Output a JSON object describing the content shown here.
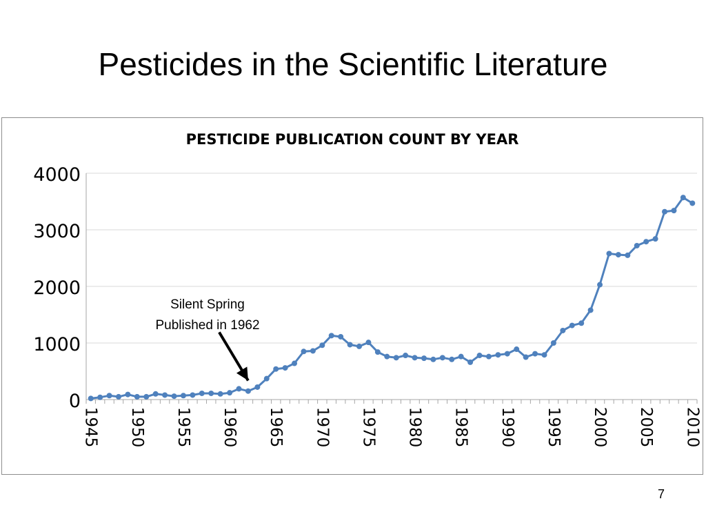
{
  "slide": {
    "title": "Pesticides in the Scientific Literature",
    "page_number": "7"
  },
  "colors": {
    "series": "#4f81bd",
    "gridline": "#d9d9d9",
    "axis": "#a6a6a6",
    "arrow": "#000000"
  },
  "chart_data": {
    "type": "line",
    "title": "PESTICIDE PUBLICATION COUNT BY YEAR",
    "xlabel": "",
    "ylabel": "",
    "ylim": [
      0,
      4000
    ],
    "yticks": [
      0,
      1000,
      2000,
      3000,
      4000
    ],
    "xticks": [
      1945,
      1950,
      1955,
      1960,
      1965,
      1970,
      1975,
      1980,
      1985,
      1990,
      1995,
      2000,
      2005,
      2010
    ],
    "grid": true,
    "legend": "none",
    "x": [
      1945,
      1946,
      1947,
      1948,
      1949,
      1950,
      1951,
      1952,
      1953,
      1954,
      1955,
      1956,
      1957,
      1958,
      1959,
      1960,
      1961,
      1962,
      1963,
      1964,
      1965,
      1966,
      1967,
      1968,
      1969,
      1970,
      1971,
      1972,
      1973,
      1974,
      1975,
      1976,
      1977,
      1978,
      1979,
      1980,
      1981,
      1982,
      1983,
      1984,
      1985,
      1986,
      1987,
      1988,
      1989,
      1990,
      1991,
      1992,
      1993,
      1994,
      1995,
      1996,
      1997,
      1998,
      1999,
      2000,
      2001,
      2002,
      2003,
      2004,
      2005,
      2006,
      2007,
      2008,
      2009,
      2010
    ],
    "series": [
      {
        "values": [
          20,
          40,
          70,
          50,
          90,
          50,
          50,
          100,
          80,
          60,
          70,
          80,
          110,
          110,
          100,
          120,
          190,
          150,
          220,
          370,
          540,
          560,
          640,
          850,
          860,
          960,
          1130,
          1110,
          970,
          940,
          1010,
          840,
          760,
          740,
          780,
          740,
          730,
          710,
          740,
          710,
          760,
          660,
          780,
          760,
          790,
          810,
          890,
          750,
          810,
          790,
          1000,
          1220,
          1310,
          1350,
          1580,
          2030,
          2580,
          2560,
          2550,
          2720,
          2790,
          2840,
          3320,
          3340,
          3570,
          3470
        ]
      }
    ],
    "annotations": [
      {
        "text_line1": "Silent Spring",
        "text_line2": "Published in 1962",
        "target_x": 1962,
        "target_y": 190
      }
    ]
  }
}
